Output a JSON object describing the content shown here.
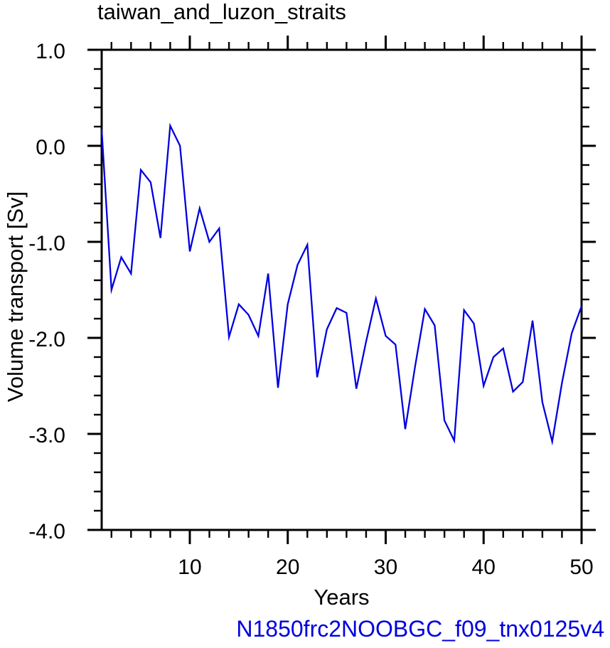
{
  "title": "taiwan_and_luzon_straits",
  "axis": {
    "xlabel": "Years",
    "ylabel": "Volume transport [Sv]"
  },
  "annotation": {
    "text": "N1850frc2NOOBGC_f09_tnx0125v4",
    "color": "#0000e0"
  },
  "colors": {
    "line": "#0000e0",
    "axis": "#000000",
    "background": "#ffffff"
  },
  "chart_data": {
    "type": "line",
    "title": "taiwan_and_luzon_straits",
    "xlabel": "Years",
    "ylabel": "Volume transport [Sv]",
    "xlim": [
      1,
      50
    ],
    "ylim": [
      -4.0,
      1.0
    ],
    "grid": false,
    "legend": "none",
    "frame": "box",
    "tick_direction": "out",
    "x_major_ticks": [
      10,
      20,
      30,
      40,
      50
    ],
    "x_major_tick_labels": [
      "10",
      "20",
      "30",
      "40",
      "50"
    ],
    "x_minor_tick_step": 2,
    "y_major_ticks": [
      1.0,
      0.0,
      -1.0,
      -2.0,
      -3.0,
      -4.0
    ],
    "y_major_tick_labels": [
      "1.0",
      "0.0",
      "-1.0",
      "-2.0",
      "-3.0",
      "-4.0"
    ],
    "y_minor_tick_step": 0.2,
    "x": [
      1,
      2,
      3,
      4,
      5,
      6,
      7,
      8,
      9,
      10,
      11,
      12,
      13,
      14,
      15,
      16,
      17,
      18,
      19,
      20,
      21,
      22,
      23,
      24,
      25,
      26,
      27,
      28,
      29,
      30,
      31,
      32,
      33,
      34,
      35,
      36,
      37,
      38,
      39,
      40,
      41,
      42,
      43,
      44,
      45,
      46,
      47,
      48,
      49,
      50
    ],
    "series": [
      {
        "name": "N1850frc2NOOBGC_f09_tnx0125v4",
        "color": "#0000e0",
        "values": [
          0.17,
          -1.5,
          -1.16,
          -1.33,
          -0.25,
          -0.38,
          -0.96,
          0.21,
          0.0,
          -1.1,
          -0.65,
          -1.0,
          -0.86,
          -1.99,
          -1.65,
          -1.76,
          -1.98,
          -1.33,
          -2.52,
          -1.65,
          -1.24,
          -1.03,
          -2.41,
          -1.91,
          -1.69,
          -1.74,
          -2.53,
          -2.04,
          -1.59,
          -1.98,
          -2.07,
          -2.95,
          -2.3,
          -1.7,
          -1.87,
          -2.86,
          -3.07,
          -1.71,
          -1.85,
          -2.5,
          -2.2,
          -2.11,
          -2.56,
          -2.46,
          -1.82,
          -2.67,
          -3.08,
          -2.47,
          -1.95,
          -1.67
        ]
      }
    ]
  }
}
